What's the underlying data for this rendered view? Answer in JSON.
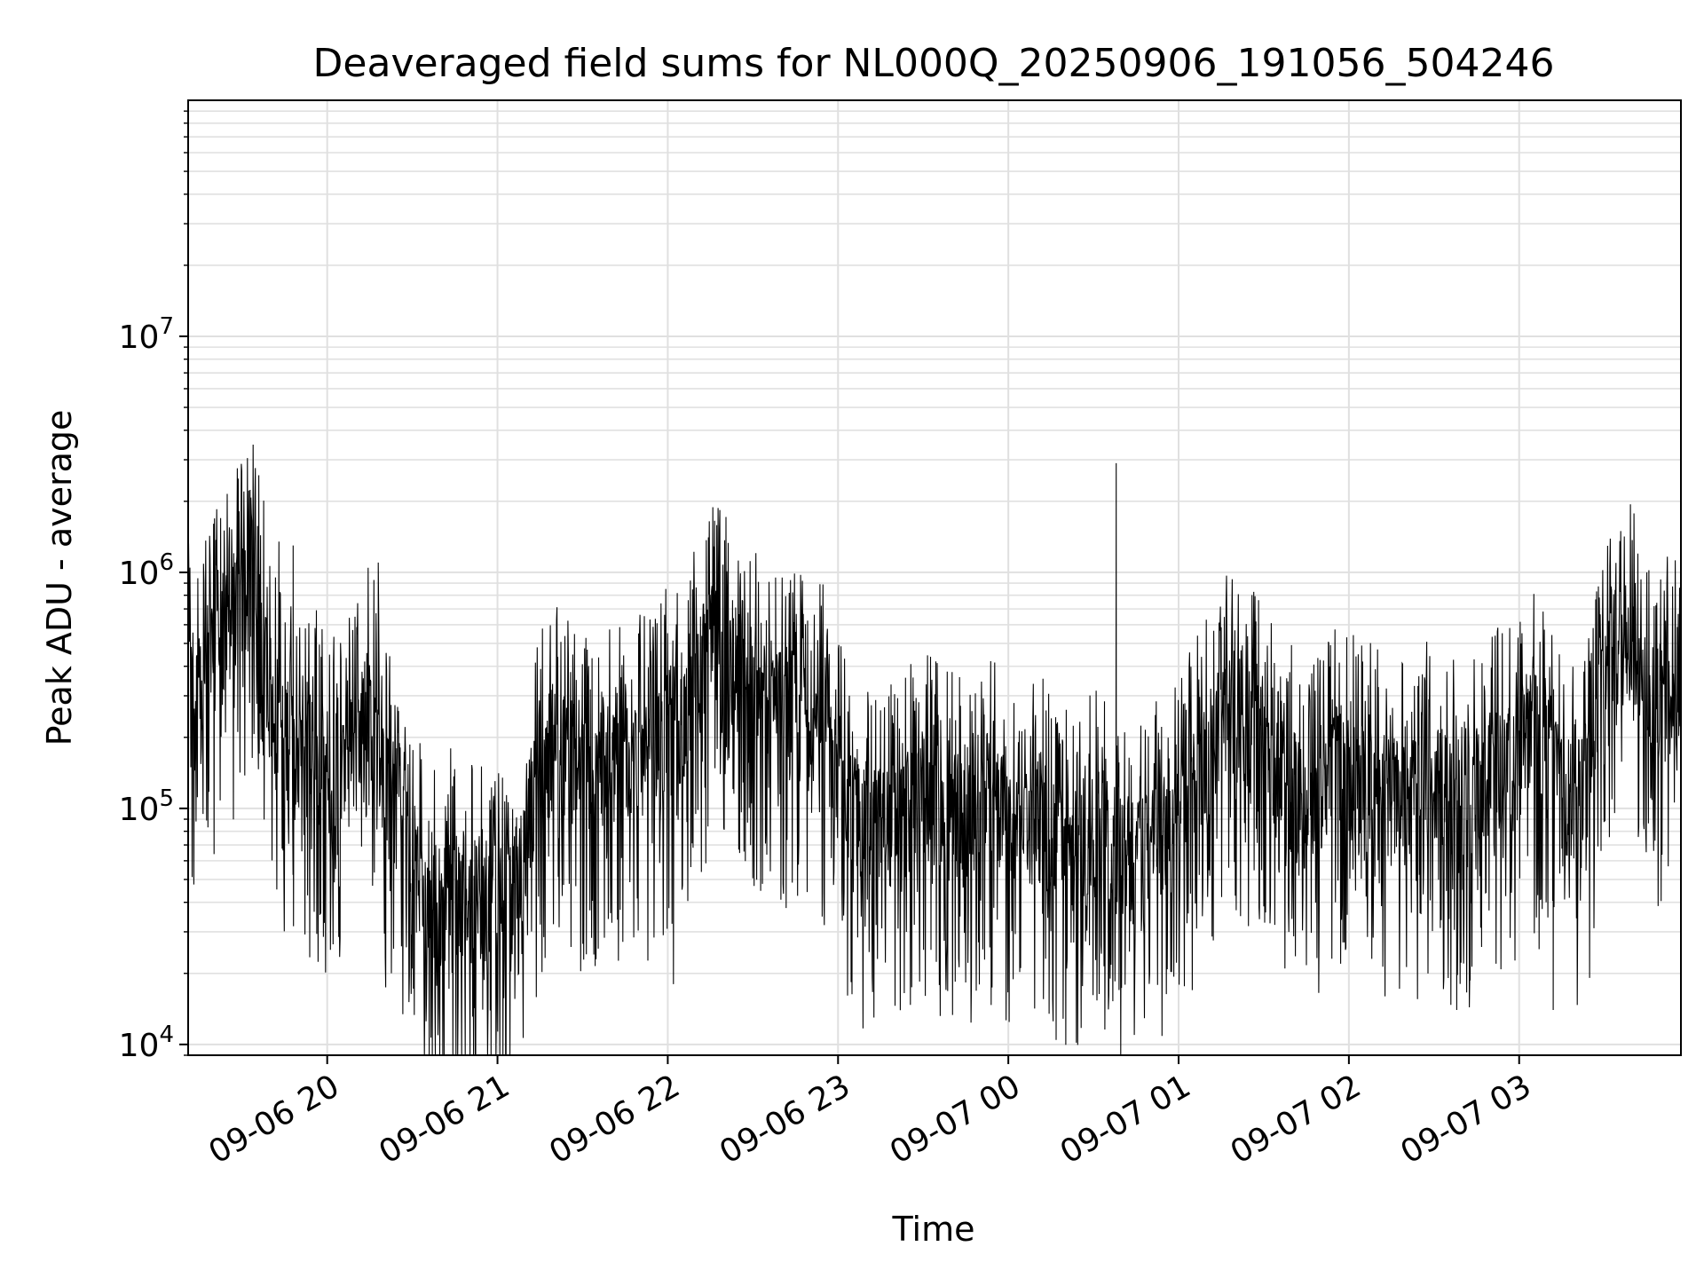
{
  "chart_data": {
    "type": "line",
    "title": "Deaveraged field sums for NL000Q_20250906_191056_504246",
    "xlabel": "Time",
    "ylabel": "Peak ADU - average",
    "y_scale": "log",
    "ylim": [
      9000,
      100000000
    ],
    "xlim": [
      "2025-09-06 19:11",
      "2025-09-07 03:57"
    ],
    "grid": true,
    "legend": "none",
    "line_color": "#000000",
    "grid_color": "#e0e0e0",
    "x_ticks": [
      {
        "value": "2025-09-06 20:00",
        "label": "09-06 20"
      },
      {
        "value": "2025-09-06 21:00",
        "label": "09-06 21"
      },
      {
        "value": "2025-09-06 22:00",
        "label": "09-06 22"
      },
      {
        "value": "2025-09-06 23:00",
        "label": "09-06 23"
      },
      {
        "value": "2025-09-07 00:00",
        "label": "09-07 00"
      },
      {
        "value": "2025-09-07 01:00",
        "label": "09-07 01"
      },
      {
        "value": "2025-09-07 02:00",
        "label": "09-07 02"
      },
      {
        "value": "2025-09-07 03:00",
        "label": "09-07 03"
      }
    ],
    "y_ticks": [
      {
        "value": 10000,
        "base": "10",
        "exp": "4"
      },
      {
        "value": 100000,
        "base": "10",
        "exp": "5"
      },
      {
        "value": 1000000,
        "base": "10",
        "exp": "6"
      },
      {
        "value": 10000000,
        "base": "10",
        "exp": "7"
      }
    ],
    "series": [
      {
        "x": [
          "2025-09-06 19:11",
          "2025-09-06 19:15",
          "2025-09-06 19:20",
          "2025-09-06 19:25",
          "2025-09-06 19:30",
          "2025-09-06 19:35",
          "2025-09-06 19:40",
          "2025-09-06 19:45",
          "2025-09-06 19:50",
          "2025-09-06 19:55",
          "2025-09-06 20:00",
          "2025-09-06 20:05",
          "2025-09-06 20:10",
          "2025-09-06 20:15",
          "2025-09-06 20:20",
          "2025-09-06 20:25",
          "2025-09-06 20:30",
          "2025-09-06 20:35",
          "2025-09-06 20:40",
          "2025-09-06 20:45",
          "2025-09-06 20:50",
          "2025-09-06 20:55",
          "2025-09-06 21:00",
          "2025-09-06 21:05",
          "2025-09-06 21:10",
          "2025-09-06 21:15",
          "2025-09-06 21:20",
          "2025-09-06 21:25",
          "2025-09-06 21:30",
          "2025-09-06 21:35",
          "2025-09-06 21:40",
          "2025-09-06 21:45",
          "2025-09-06 21:50",
          "2025-09-06 21:55",
          "2025-09-06 22:00",
          "2025-09-06 22:05",
          "2025-09-06 22:10",
          "2025-09-06 22:15",
          "2025-09-06 22:20",
          "2025-09-06 22:25",
          "2025-09-06 22:30",
          "2025-09-06 22:35",
          "2025-09-06 22:40",
          "2025-09-06 22:45",
          "2025-09-06 22:50",
          "2025-09-06 22:55",
          "2025-09-06 23:00",
          "2025-09-06 23:05",
          "2025-09-06 23:10",
          "2025-09-06 23:15",
          "2025-09-06 23:20",
          "2025-09-06 23:25",
          "2025-09-06 23:30",
          "2025-09-06 23:35",
          "2025-09-06 23:40",
          "2025-09-06 23:45",
          "2025-09-06 23:50",
          "2025-09-06 23:55",
          "2025-09-07 00:00",
          "2025-09-07 00:05",
          "2025-09-07 00:10",
          "2025-09-07 00:15",
          "2025-09-07 00:20",
          "2025-09-07 00:25",
          "2025-09-07 00:30",
          "2025-09-07 00:35",
          "2025-09-07 00:40",
          "2025-09-07 00:45",
          "2025-09-07 00:50",
          "2025-09-07 00:55",
          "2025-09-07 01:00",
          "2025-09-07 01:05",
          "2025-09-07 01:10",
          "2025-09-07 01:15",
          "2025-09-07 01:20",
          "2025-09-07 01:25",
          "2025-09-07 01:30",
          "2025-09-07 01:35",
          "2025-09-07 01:40",
          "2025-09-07 01:45",
          "2025-09-07 01:50",
          "2025-09-07 01:55",
          "2025-09-07 02:00",
          "2025-09-07 02:05",
          "2025-09-07 02:10",
          "2025-09-07 02:15",
          "2025-09-07 02:20",
          "2025-09-07 02:25",
          "2025-09-07 02:30",
          "2025-09-07 02:35",
          "2025-09-07 02:40",
          "2025-09-07 02:45",
          "2025-09-07 02:50",
          "2025-09-07 02:55",
          "2025-09-07 03:00",
          "2025-09-07 03:05",
          "2025-09-07 03:10",
          "2025-09-07 03:15",
          "2025-09-07 03:20",
          "2025-09-07 03:25",
          "2025-09-07 03:30",
          "2025-09-07 03:35",
          "2025-09-07 03:40",
          "2025-09-07 03:45",
          "2025-09-07 03:50",
          "2025-09-07 03:57"
        ],
        "y": [
          300000,
          250000,
          450000,
          500000,
          700000,
          900000,
          250000,
          200000,
          150000,
          170000,
          120000,
          130000,
          180000,
          280000,
          120000,
          90000,
          50000,
          40000,
          35000,
          45000,
          38000,
          35000,
          40000,
          35000,
          70000,
          130000,
          180000,
          150000,
          130000,
          120000,
          140000,
          160000,
          150000,
          140000,
          200000,
          220000,
          350000,
          420000,
          450000,
          400000,
          320000,
          280000,
          250000,
          230000,
          220000,
          200000,
          120000,
          90000,
          80000,
          75000,
          80000,
          90000,
          110000,
          95000,
          85000,
          85000,
          90000,
          100000,
          80000,
          70000,
          90000,
          70000,
          65000,
          60000,
          70000,
          75000,
          60000,
          55000,
          70000,
          70000,
          80000,
          120000,
          160000,
          200000,
          250000,
          200000,
          180000,
          120000,
          110000,
          90000,
          100000,
          150000,
          130000,
          110000,
          120000,
          100000,
          95000,
          110000,
          120000,
          105000,
          90000,
          110000,
          140000,
          130000,
          160000,
          200000,
          150000,
          100000,
          100000,
          130000,
          400000,
          450000,
          500000,
          300000,
          250000,
          300000
        ]
      }
    ],
    "peaks": [
      {
        "x": "2025-09-07 00:38",
        "y": 2900000
      },
      {
        "x": "2025-09-06 19:43",
        "y": 1350000
      },
      {
        "x": "2025-09-06 19:48",
        "y": 1300000
      },
      {
        "x": "2025-09-06 20:18",
        "y": 1100000
      },
      {
        "x": "2025-09-06 22:38",
        "y": 950000
      },
      {
        "x": "2025-09-07 03:45",
        "y": 1000000
      },
      {
        "x": "2025-09-07 00:39",
        "y": 17000
      },
      {
        "x": "2025-09-07 02:38",
        "y": 14000
      },
      {
        "x": "2025-09-07 03:12",
        "y": 14000
      },
      {
        "x": "2025-09-06 22:02",
        "y": 18000
      }
    ]
  }
}
